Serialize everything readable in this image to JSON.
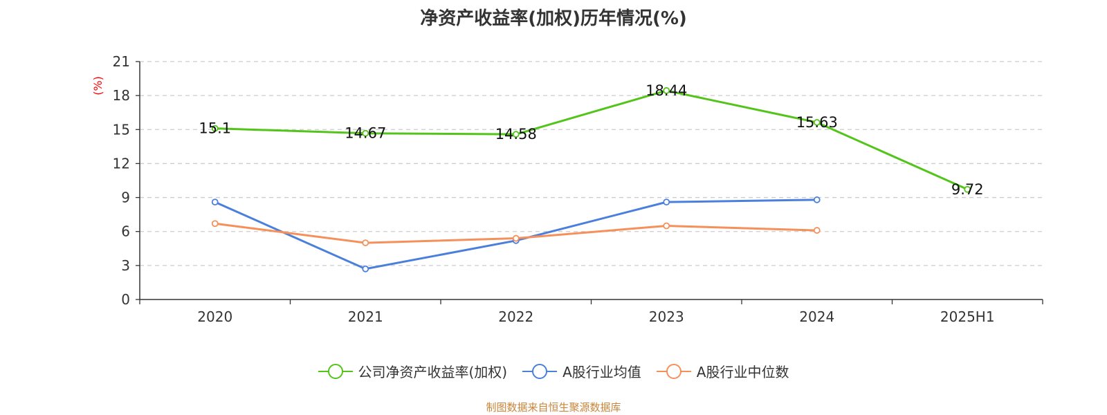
{
  "chart_data": {
    "type": "line",
    "title": "净资产收益率(加权)历年情况(%)",
    "ylabel": "(%)",
    "categories": [
      "2020",
      "2021",
      "2022",
      "2023",
      "2024",
      "2025H1"
    ],
    "ylim": [
      0,
      21
    ],
    "yticks": [
      0,
      3,
      6,
      9,
      12,
      15,
      18,
      21
    ],
    "grid": true,
    "legend_position": "bottom",
    "series": [
      {
        "name": "公司净资产收益率(加权)",
        "color": "#52c41a",
        "values": [
          15.1,
          14.67,
          14.58,
          18.44,
          15.63,
          9.72
        ],
        "show_labels": true
      },
      {
        "name": "A股行业均值",
        "color": "#4a7fdb",
        "values": [
          8.6,
          2.7,
          5.2,
          8.6,
          8.8,
          null
        ],
        "show_labels": false
      },
      {
        "name": "A股行业中位数",
        "color": "#f5905a",
        "values": [
          6.7,
          5.0,
          5.4,
          6.5,
          6.1,
          null
        ],
        "show_labels": false
      }
    ]
  },
  "source_note": "制图数据来自恒生聚源数据库"
}
